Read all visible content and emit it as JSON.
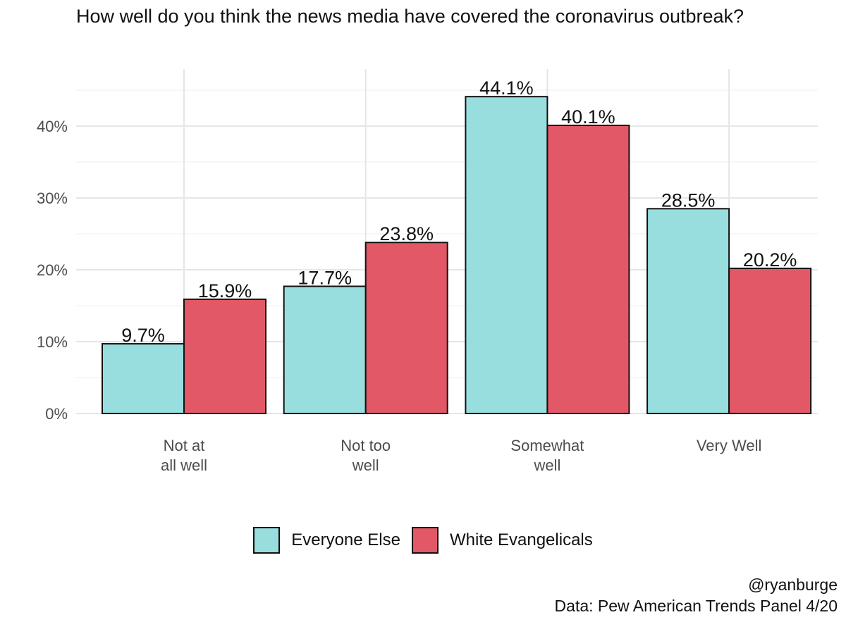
{
  "title": "How well do you think the news media have covered the coronavirus outbreak?",
  "caption": [
    "@ryanburge",
    "Data: Pew American Trends Panel 4/20"
  ],
  "chart_data": {
    "type": "bar",
    "categories": [
      [
        "Not at",
        "all well"
      ],
      [
        "Not too",
        "well"
      ],
      [
        "Somewhat",
        "well"
      ],
      [
        "Very Well"
      ]
    ],
    "series": [
      {
        "name": "Everyone Else",
        "color": "#98DEDF",
        "values": [
          9.7,
          17.7,
          44.1,
          28.5
        ],
        "labels": [
          "9.7%",
          "17.7%",
          "44.1%",
          "28.5%"
        ]
      },
      {
        "name": "White Evangelicals",
        "color": "#E25866",
        "values": [
          15.9,
          23.8,
          40.1,
          20.2
        ],
        "labels": [
          "15.9%",
          "23.8%",
          "40.1%",
          "20.2%"
        ]
      }
    ],
    "ylim": [
      0,
      48
    ],
    "yticks": [
      0,
      10,
      20,
      30,
      40
    ],
    "ytick_labels": [
      "0%",
      "10%",
      "20%",
      "30%",
      "40%"
    ],
    "grid": true,
    "legend_position": "bottom"
  }
}
